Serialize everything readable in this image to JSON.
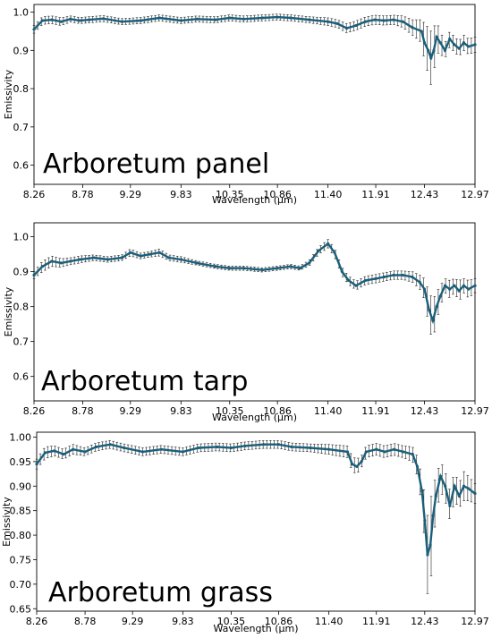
{
  "colors": {
    "series": "#1a5f7a",
    "errorbar": "#222222"
  },
  "chart_data": [
    {
      "type": "line",
      "title": "",
      "annotation": "Arboretum panel",
      "xlabel": "Wavelength (µm)",
      "ylabel": "Emissivity",
      "xlim": [
        8.26,
        12.97
      ],
      "ylim": [
        0.55,
        1.02
      ],
      "x_ticks": [
        "8.26",
        "8.78",
        "9.29",
        "9.83",
        "10.35",
        "10.86",
        "11.40",
        "11.91",
        "12.43",
        "12.97"
      ],
      "y_ticks": [
        "0.6",
        "0.7",
        "0.8",
        "0.9",
        "1.0"
      ],
      "series": [
        {
          "x": [
            8.26,
            8.35,
            8.45,
            8.55,
            8.65,
            8.75,
            8.85,
            9.0,
            9.2,
            9.4,
            9.6,
            9.83,
            10.0,
            10.2,
            10.35,
            10.5,
            10.7,
            10.86,
            11.0,
            11.2,
            11.4,
            11.5,
            11.6,
            11.7,
            11.8,
            11.9,
            12.0,
            12.1,
            12.2,
            12.3,
            12.4,
            12.43,
            12.47,
            12.5,
            12.53,
            12.56,
            12.6,
            12.65,
            12.7,
            12.75,
            12.8,
            12.85,
            12.9,
            12.97
          ],
          "y": [
            0.955,
            0.978,
            0.98,
            0.975,
            0.982,
            0.978,
            0.98,
            0.983,
            0.975,
            0.978,
            0.985,
            0.978,
            0.982,
            0.98,
            0.985,
            0.982,
            0.985,
            0.987,
            0.985,
            0.98,
            0.975,
            0.97,
            0.958,
            0.965,
            0.975,
            0.98,
            0.978,
            0.98,
            0.975,
            0.96,
            0.95,
            0.92,
            0.9,
            0.88,
            0.9,
            0.935,
            0.92,
            0.9,
            0.93,
            0.915,
            0.905,
            0.92,
            0.91,
            0.915
          ],
          "err": [
            0.01,
            0.01,
            0.01,
            0.01,
            0.008,
            0.008,
            0.008,
            0.008,
            0.008,
            0.008,
            0.008,
            0.008,
            0.008,
            0.008,
            0.008,
            0.008,
            0.008,
            0.008,
            0.008,
            0.008,
            0.01,
            0.01,
            0.012,
            0.012,
            0.012,
            0.012,
            0.012,
            0.012,
            0.015,
            0.02,
            0.03,
            0.05,
            0.06,
            0.07,
            0.06,
            0.04,
            0.03,
            0.02,
            0.02,
            0.02,
            0.02,
            0.02,
            0.02,
            0.02
          ]
        }
      ]
    },
    {
      "type": "line",
      "title": "",
      "annotation": "Arboretum tarp",
      "xlabel": "Wavelength (µm)",
      "ylabel": "Emissivity",
      "xlim": [
        8.26,
        12.97
      ],
      "ylim": [
        0.53,
        1.04
      ],
      "x_ticks": [
        "8.26",
        "8.78",
        "9.29",
        "9.83",
        "10.35",
        "10.86",
        "11.40",
        "11.91",
        "12.43",
        "12.97"
      ],
      "y_ticks": [
        "0.6",
        "0.7",
        "0.8",
        "0.9",
        "1.0"
      ],
      "series": [
        {
          "x": [
            8.26,
            8.35,
            8.45,
            8.55,
            8.65,
            8.75,
            8.9,
            9.05,
            9.2,
            9.29,
            9.4,
            9.5,
            9.6,
            9.7,
            9.83,
            10.0,
            10.2,
            10.35,
            10.5,
            10.7,
            10.86,
            11.0,
            11.1,
            11.2,
            11.3,
            11.4,
            11.47,
            11.55,
            11.62,
            11.7,
            11.8,
            11.91,
            12.0,
            12.1,
            12.2,
            12.3,
            12.38,
            12.43,
            12.48,
            12.52,
            12.56,
            12.6,
            12.65,
            12.7,
            12.75,
            12.8,
            12.85,
            12.9,
            12.97
          ],
          "y": [
            0.89,
            0.915,
            0.93,
            0.925,
            0.93,
            0.935,
            0.94,
            0.935,
            0.94,
            0.955,
            0.945,
            0.95,
            0.955,
            0.94,
            0.935,
            0.925,
            0.915,
            0.91,
            0.91,
            0.905,
            0.91,
            0.915,
            0.91,
            0.925,
            0.96,
            0.98,
            0.955,
            0.9,
            0.875,
            0.86,
            0.875,
            0.88,
            0.885,
            0.89,
            0.89,
            0.885,
            0.87,
            0.85,
            0.79,
            0.76,
            0.8,
            0.83,
            0.86,
            0.85,
            0.86,
            0.845,
            0.86,
            0.85,
            0.86
          ],
          "err": [
            0.01,
            0.015,
            0.015,
            0.012,
            0.01,
            0.01,
            0.008,
            0.008,
            0.008,
            0.01,
            0.008,
            0.008,
            0.01,
            0.008,
            0.008,
            0.006,
            0.006,
            0.006,
            0.006,
            0.006,
            0.006,
            0.006,
            0.006,
            0.008,
            0.01,
            0.012,
            0.012,
            0.012,
            0.012,
            0.012,
            0.012,
            0.012,
            0.012,
            0.012,
            0.012,
            0.015,
            0.02,
            0.03,
            0.05,
            0.06,
            0.04,
            0.03,
            0.02,
            0.025,
            0.02,
            0.03,
            0.02,
            0.025,
            0.02
          ]
        }
      ]
    },
    {
      "type": "line",
      "title": "",
      "annotation": "Arboretum grass",
      "xlabel": "Wavelength (µm)",
      "ylabel": "Emissivity",
      "xlim": [
        8.26,
        12.97
      ],
      "ylim": [
        0.645,
        1.01
      ],
      "x_ticks": [
        "8.26",
        "8.78",
        "9.29",
        "9.83",
        "10.35",
        "10.86",
        "11.40",
        "11.91",
        "12.43",
        "12.97"
      ],
      "y_ticks": [
        "0.65",
        "0.70",
        "0.75",
        "0.80",
        "0.85",
        "0.90",
        "0.95",
        "1.00"
      ],
      "series": [
        {
          "x": [
            8.26,
            8.35,
            8.45,
            8.55,
            8.65,
            8.78,
            8.9,
            9.05,
            9.2,
            9.4,
            9.6,
            9.83,
            10.0,
            10.2,
            10.35,
            10.5,
            10.7,
            10.86,
            11.0,
            11.2,
            11.4,
            11.6,
            11.65,
            11.7,
            11.75,
            11.8,
            11.91,
            12.0,
            12.1,
            12.2,
            12.3,
            12.35,
            12.4,
            12.43,
            12.46,
            12.49,
            12.52,
            12.55,
            12.6,
            12.65,
            12.7,
            12.75,
            12.8,
            12.85,
            12.9,
            12.97
          ],
          "y": [
            0.945,
            0.968,
            0.972,
            0.965,
            0.975,
            0.97,
            0.98,
            0.985,
            0.978,
            0.97,
            0.975,
            0.97,
            0.978,
            0.98,
            0.978,
            0.982,
            0.985,
            0.985,
            0.98,
            0.978,
            0.975,
            0.97,
            0.945,
            0.94,
            0.95,
            0.97,
            0.975,
            0.97,
            0.975,
            0.97,
            0.965,
            0.94,
            0.89,
            0.83,
            0.76,
            0.78,
            0.84,
            0.88,
            0.92,
            0.9,
            0.86,
            0.9,
            0.88,
            0.9,
            0.895,
            0.885
          ],
          "err": [
            0.01,
            0.012,
            0.01,
            0.01,
            0.01,
            0.008,
            0.008,
            0.008,
            0.008,
            0.008,
            0.008,
            0.008,
            0.008,
            0.008,
            0.008,
            0.008,
            0.008,
            0.008,
            0.008,
            0.008,
            0.01,
            0.012,
            0.015,
            0.015,
            0.012,
            0.012,
            0.012,
            0.012,
            0.012,
            0.012,
            0.015,
            0.02,
            0.03,
            0.05,
            0.08,
            0.09,
            0.06,
            0.04,
            0.03,
            0.03,
            0.03,
            0.03,
            0.025,
            0.03,
            0.025,
            0.02
          ]
        }
      ]
    }
  ]
}
